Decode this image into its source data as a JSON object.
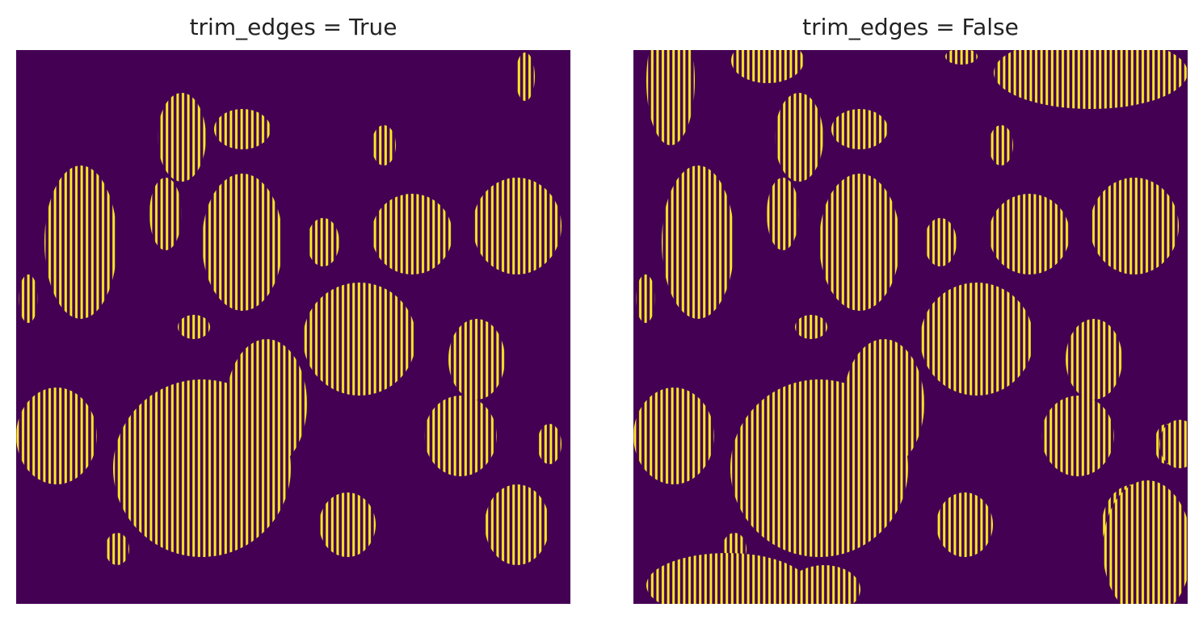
{
  "panels": [
    {
      "title": "trim_edges = True"
    },
    {
      "title": "trim_edges = False"
    }
  ]
}
